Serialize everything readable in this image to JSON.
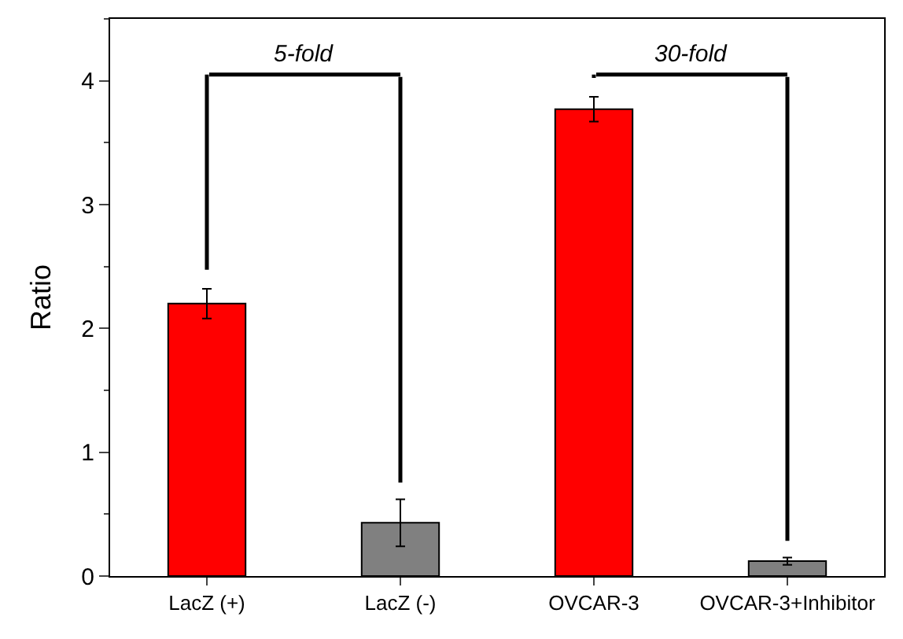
{
  "chart_data": {
    "type": "bar",
    "ylabel": "Ratio",
    "categories": [
      "LacZ (+)",
      "LacZ (-)",
      "OVCAR-3",
      "OVCAR-3+Inhibitor"
    ],
    "values": [
      2.2,
      0.43,
      3.77,
      0.12
    ],
    "colors": [
      "#ff0000",
      "#808080",
      "#ff0000",
      "#808080"
    ],
    "errors": [
      0.12,
      0.19,
      0.1,
      0.03
    ],
    "ylim": [
      0,
      4.5
    ],
    "yticks": [
      0,
      1,
      2,
      3,
      4
    ],
    "annotations": [
      "5-fold",
      "30-fold"
    ]
  }
}
